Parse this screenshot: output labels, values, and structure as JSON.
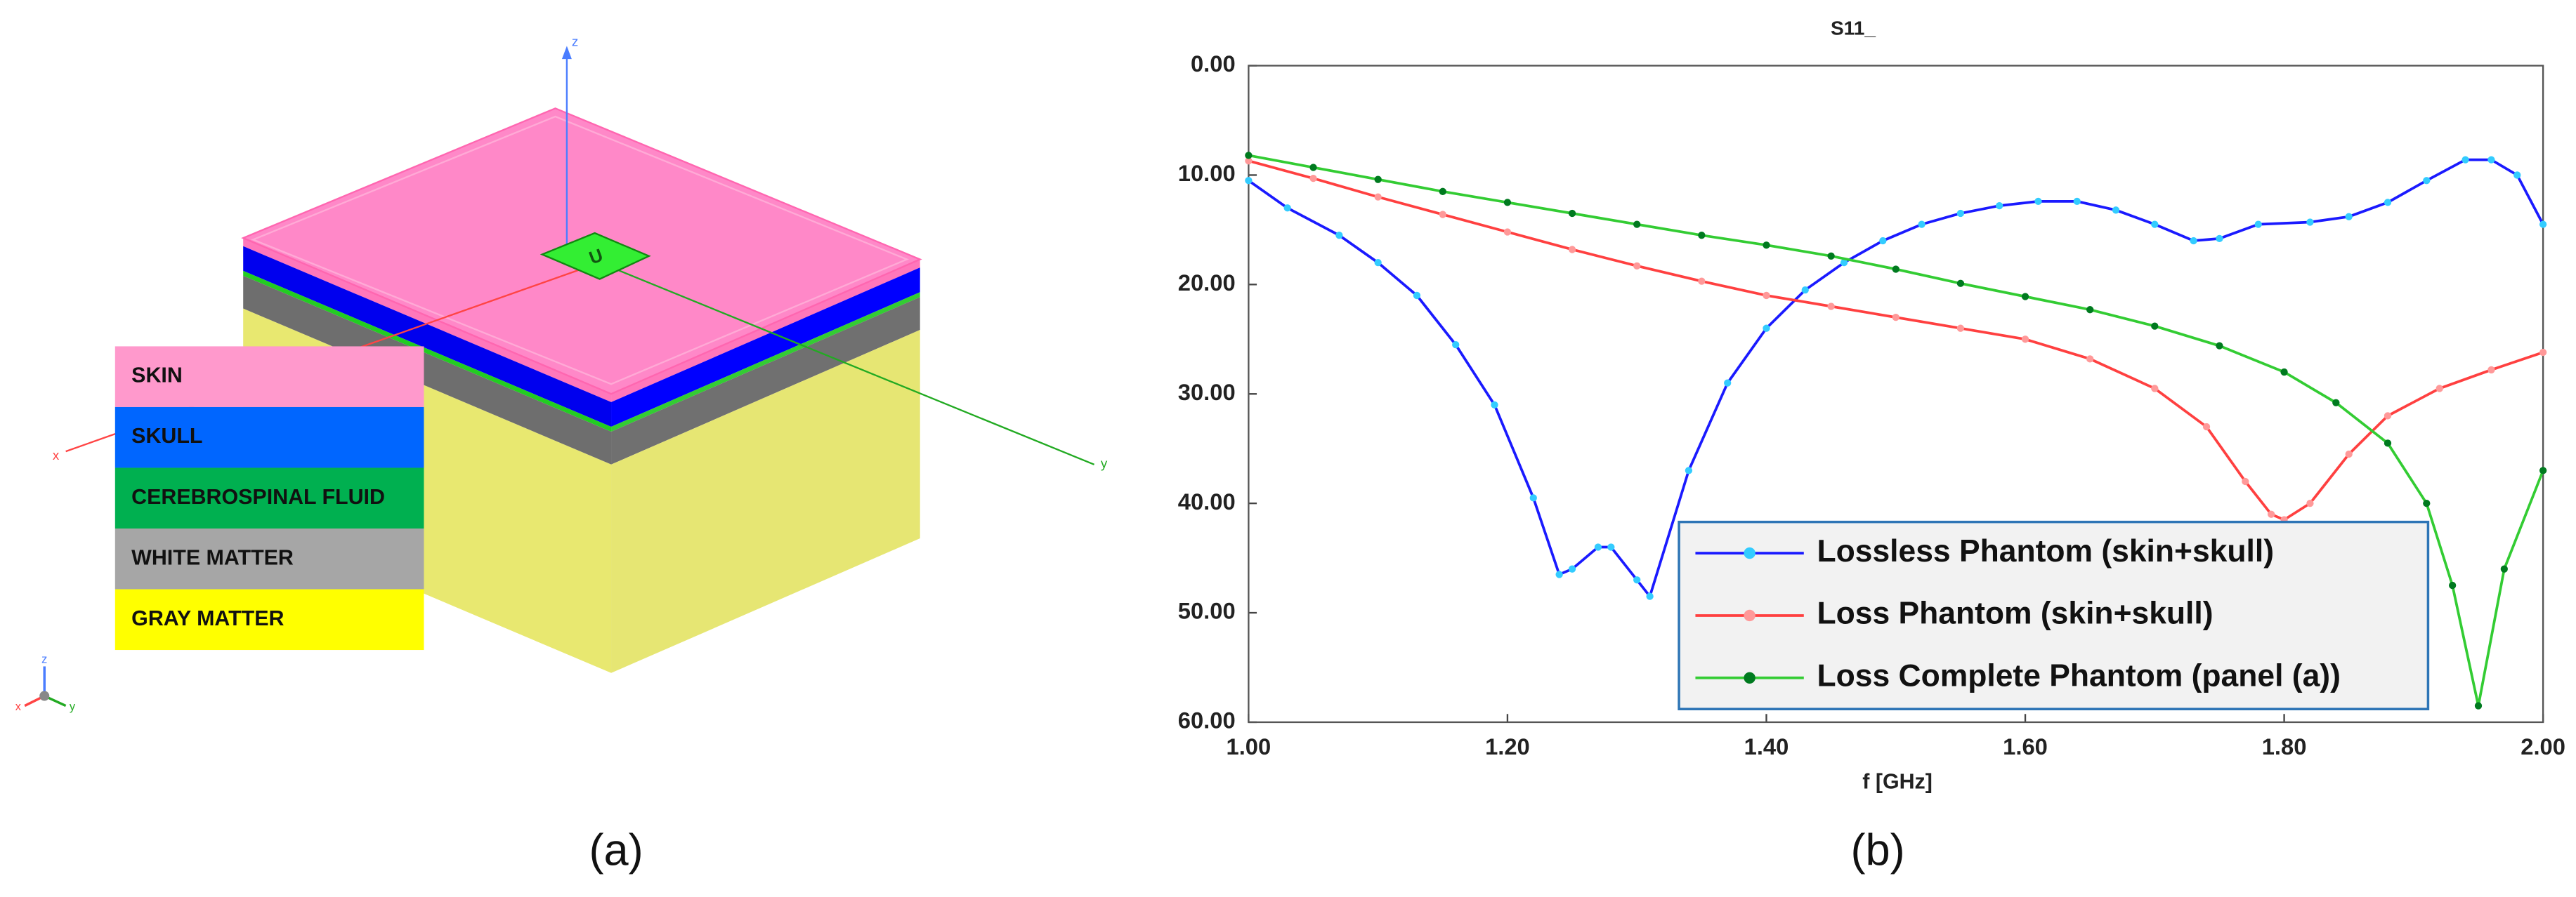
{
  "panel_a": {
    "axis_labels": {
      "z": "z",
      "x": "x",
      "y": "y"
    },
    "triad_labels": {
      "z": "z",
      "x": "x",
      "y": "y"
    },
    "patch_label": "U",
    "layers": [
      {
        "name": "SKIN",
        "color": "#ff99cc"
      },
      {
        "name": "SKULL",
        "color": "#0066ff"
      },
      {
        "name": "CEREBROSPINAL FLUID",
        "color": "#00b050"
      },
      {
        "name": "WHITE MATTER",
        "color": "#a6a6a6"
      },
      {
        "name": "GRAY MATTER",
        "color": "#ffff00"
      }
    ],
    "caption": "(a)"
  },
  "chart_data": {
    "type": "line",
    "title": "S11_",
    "x_label": "f [GHz]",
    "caption": "(b)",
    "xlim": [
      1.0,
      2.0
    ],
    "xticks": [
      {
        "value": 1.0,
        "label": "1.00"
      },
      {
        "value": 1.2,
        "label": "1.20"
      },
      {
        "value": 1.4,
        "label": "1.40"
      },
      {
        "value": 1.6,
        "label": "1.60"
      },
      {
        "value": 1.8,
        "label": "1.80"
      },
      {
        "value": 2.0,
        "label": "2.00"
      }
    ],
    "ylim": [
      0,
      60
    ],
    "y_inverted": true,
    "yticks": [
      {
        "value": 0,
        "label": "0.00"
      },
      {
        "value": 10,
        "label": "10.00"
      },
      {
        "value": 20,
        "label": "20.00"
      },
      {
        "value": 30,
        "label": "30.00"
      },
      {
        "value": 40,
        "label": "40.00"
      },
      {
        "value": 50,
        "label": "50.00"
      },
      {
        "value": 60,
        "label": "60.00"
      }
    ],
    "grid": false,
    "legend": "lower right",
    "series": [
      {
        "name": "Lossless Phantom (skin+skull)",
        "color": "#1a1aff",
        "marker_color": "#33ccff",
        "x": [
          1.0,
          1.03,
          1.07,
          1.1,
          1.13,
          1.16,
          1.19,
          1.22,
          1.24,
          1.25,
          1.27,
          1.28,
          1.3,
          1.31,
          1.34,
          1.37,
          1.4,
          1.43,
          1.46,
          1.49,
          1.52,
          1.55,
          1.58,
          1.61,
          1.64,
          1.67,
          1.7,
          1.73,
          1.75,
          1.78,
          1.82,
          1.85,
          1.88,
          1.91,
          1.94,
          1.96,
          1.98,
          2.0
        ],
        "values": [
          10.5,
          13,
          15.5,
          18,
          21,
          25.5,
          31,
          39.5,
          46.5,
          46,
          44,
          44,
          47,
          48.5,
          37,
          29,
          24,
          20.5,
          18,
          16,
          14.5,
          13.5,
          12.8,
          12.4,
          12.4,
          13.2,
          14.5,
          16,
          15.8,
          14.5,
          14.3,
          13.8,
          12.5,
          10.5,
          8.6,
          8.6,
          10,
          14.5
        ]
      },
      {
        "name": "Loss Phantom (skin+skull)",
        "color": "#ff4040",
        "marker_color": "#ff9999",
        "x": [
          1.0,
          1.05,
          1.1,
          1.15,
          1.2,
          1.25,
          1.3,
          1.35,
          1.4,
          1.45,
          1.5,
          1.55,
          1.6,
          1.65,
          1.7,
          1.74,
          1.77,
          1.79,
          1.8,
          1.82,
          1.85,
          1.88,
          1.92,
          1.96,
          2.0
        ],
        "values": [
          8.7,
          10.3,
          12,
          13.6,
          15.2,
          16.8,
          18.3,
          19.7,
          21,
          22,
          23,
          24,
          25,
          26.8,
          29.5,
          33,
          38,
          41,
          41.5,
          40,
          35.5,
          32,
          29.5,
          27.8,
          26.2
        ]
      },
      {
        "name": "Loss Complete Phantom (panel (a))",
        "color": "#33cc33",
        "marker_color": "#007a1f",
        "x": [
          1.0,
          1.05,
          1.1,
          1.15,
          1.2,
          1.25,
          1.3,
          1.35,
          1.4,
          1.45,
          1.5,
          1.55,
          1.6,
          1.65,
          1.7,
          1.75,
          1.8,
          1.84,
          1.88,
          1.91,
          1.93,
          1.95,
          1.97,
          2.0
        ],
        "values": [
          8.2,
          9.3,
          10.4,
          11.5,
          12.5,
          13.5,
          14.5,
          15.5,
          16.4,
          17.4,
          18.6,
          19.9,
          21.1,
          22.3,
          23.8,
          25.6,
          28,
          30.8,
          34.5,
          40,
          47.5,
          58.5,
          46,
          37
        ]
      }
    ]
  }
}
